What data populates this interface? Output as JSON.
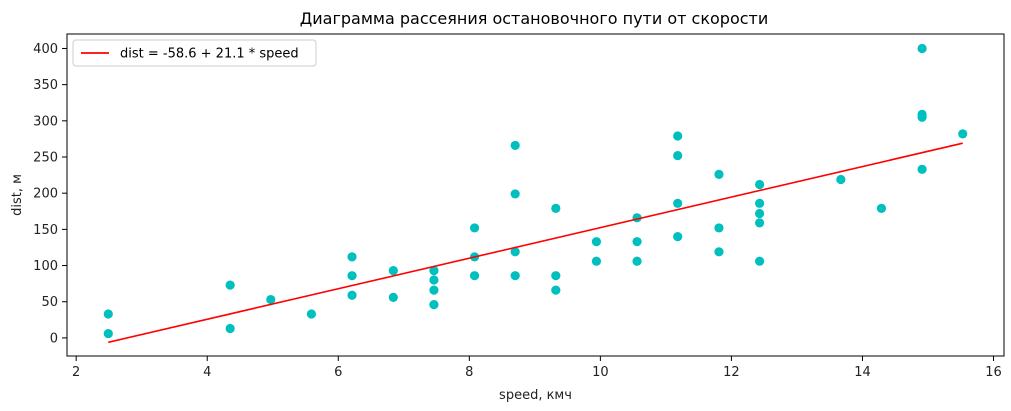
{
  "chart_data": {
    "type": "scatter",
    "title": "Диаграмма рассеяния остановочного пути от скорости",
    "xlabel": "speed, кмч",
    "ylabel": "dist, м",
    "xlim": [
      1.86,
      16.16
    ],
    "ylim": [
      -25,
      420
    ],
    "xticks": [
      2,
      4,
      6,
      8,
      10,
      12,
      14,
      16
    ],
    "yticks": [
      0,
      50,
      100,
      150,
      200,
      250,
      300,
      350,
      400
    ],
    "grid": false,
    "legend_position": "top-left",
    "point_color": "#00bfbf",
    "line_color": "#ff0000",
    "scatter": {
      "x": [
        2.49,
        2.49,
        4.35,
        4.35,
        4.97,
        5.59,
        6.21,
        6.21,
        6.21,
        6.84,
        6.84,
        7.46,
        7.46,
        7.46,
        7.46,
        8.08,
        8.08,
        8.08,
        8.7,
        8.7,
        8.7,
        8.7,
        9.32,
        9.32,
        9.32,
        9.94,
        9.94,
        10.56,
        10.56,
        10.56,
        11.18,
        11.18,
        11.18,
        11.18,
        11.81,
        11.81,
        11.81,
        12.43,
        12.43,
        12.43,
        12.43,
        12.43,
        13.67,
        14.29,
        14.91,
        14.91,
        14.91,
        14.91,
        15.53
      ],
      "y": [
        33,
        6,
        73,
        13,
        53,
        33,
        112,
        86,
        59,
        93,
        56,
        93,
        80,
        66,
        46,
        152,
        112,
        86,
        266,
        199,
        119,
        86,
        179,
        86,
        66,
        133,
        106,
        166,
        133,
        106,
        279,
        252,
        186,
        140,
        226,
        152,
        119,
        212,
        186,
        172,
        159,
        106,
        219,
        179,
        400,
        309,
        305,
        233,
        282
      ]
    },
    "series": [
      {
        "name": "dist = -58.6 + 21.1 * speed",
        "type": "line",
        "x": [
          2.49,
          15.53
        ],
        "y": [
          -6.1,
          269.1
        ]
      }
    ]
  }
}
